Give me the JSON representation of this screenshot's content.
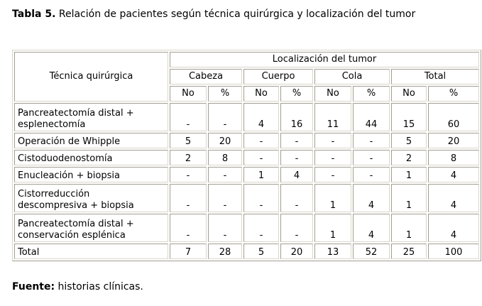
{
  "caption": {
    "label": "Tabla 5.",
    "text": " Relación de pacientes según técnica quirúrgica y localización del tumor"
  },
  "table": {
    "row_header": "Técnica quirúrgica",
    "group_header": "Localización del tumor",
    "groups": [
      "Cabeza",
      "Cuerpo",
      "Cola",
      "Total"
    ],
    "sub": [
      "No",
      "%",
      "No",
      "%",
      "No",
      "%",
      "No",
      "%"
    ],
    "rows": [
      {
        "label": [
          "Pancreatectomía distal +",
          "esplenectomía"
        ],
        "values": [
          "-",
          "-",
          "4",
          "16",
          "11",
          "44",
          "15",
          "60"
        ]
      },
      {
        "label": [
          "Operación de Whipple"
        ],
        "values": [
          "5",
          "20",
          "-",
          "-",
          "-",
          "-",
          "5",
          "20"
        ]
      },
      {
        "label": [
          "Cistoduodenostomía"
        ],
        "values": [
          "2",
          "8",
          "-",
          "-",
          "-",
          "-",
          "2",
          "8"
        ]
      },
      {
        "label": [
          "Enucleación + biopsia"
        ],
        "values": [
          "-",
          "-",
          "1",
          "4",
          "-",
          "-",
          "1",
          "4"
        ]
      },
      {
        "label": [
          "Cistorreducción",
          "descompresiva + biopsia"
        ],
        "values": [
          "-",
          "-",
          "-",
          "-",
          "1",
          "4",
          "1",
          "4"
        ]
      },
      {
        "label": [
          "Pancreatectomía distal +",
          "conservación  esplénica"
        ],
        "values": [
          "-",
          "-",
          "-",
          "-",
          "1",
          "4",
          "1",
          "4"
        ]
      },
      {
        "label": [
          "Total"
        ],
        "values": [
          "7",
          "28",
          "5",
          "20",
          "13",
          "52",
          "25",
          "100"
        ]
      }
    ]
  },
  "source": {
    "label": "Fuente:",
    "text": " historias clínicas."
  }
}
